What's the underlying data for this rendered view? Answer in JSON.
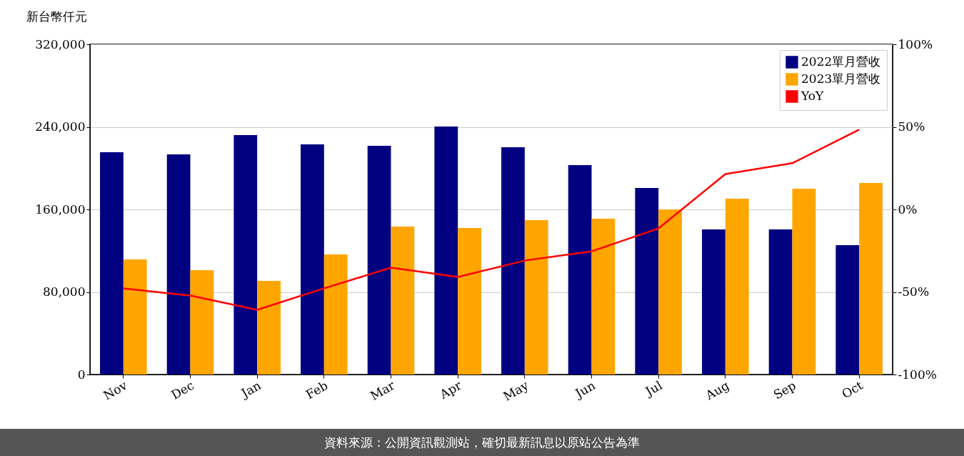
{
  "chart_data": {
    "type": "bar",
    "ylabel": "新台幣仟元",
    "categories": [
      "Nov",
      "Dec",
      "Jan",
      "Feb",
      "Mar",
      "Apr",
      "May",
      "Jun",
      "Jul",
      "Aug",
      "Sep",
      "Oct"
    ],
    "series": [
      {
        "name": "2022單月營收",
        "color": "#000080",
        "values": [
          215400,
          213300,
          232000,
          223000,
          221600,
          240300,
          220200,
          202900,
          180800,
          140600,
          140600,
          125400
        ]
      },
      {
        "name": "2023單月營收",
        "color": "#ffa500",
        "values": [
          111500,
          101100,
          90700,
          116400,
          143400,
          142000,
          149600,
          151000,
          160000,
          170400,
          180100,
          185600
        ]
      },
      {
        "name": "YoY",
        "type": "line",
        "axis": "y2",
        "color": "#ff0000",
        "values": [
          -47.8,
          -52.2,
          -60.8,
          -47.8,
          -35.3,
          -40.9,
          -31,
          -25.4,
          -11.5,
          21.4,
          28,
          48.3
        ]
      }
    ],
    "ylim": [
      0,
      320000
    ],
    "yticks": [
      {
        "value": 0,
        "label": "0"
      },
      {
        "value": 80000,
        "label": "80,000"
      },
      {
        "value": 160000,
        "label": "160,000"
      },
      {
        "value": 240000,
        "label": "240,000"
      },
      {
        "value": 320000,
        "label": "320,000"
      }
    ],
    "y2lim": [
      -100,
      100
    ],
    "y2ticks": [
      {
        "value": -100,
        "label": "-100%"
      },
      {
        "value": -50,
        "label": "-50%"
      },
      {
        "value": 0,
        "label": "0%"
      },
      {
        "value": 50,
        "label": "50%"
      },
      {
        "value": 100,
        "label": "100%"
      }
    ],
    "grid": "y",
    "legend": "top right",
    "annotations": [
      "資料來源：公開資訊觀測站，確切最新訊息以原站公告為準"
    ]
  }
}
